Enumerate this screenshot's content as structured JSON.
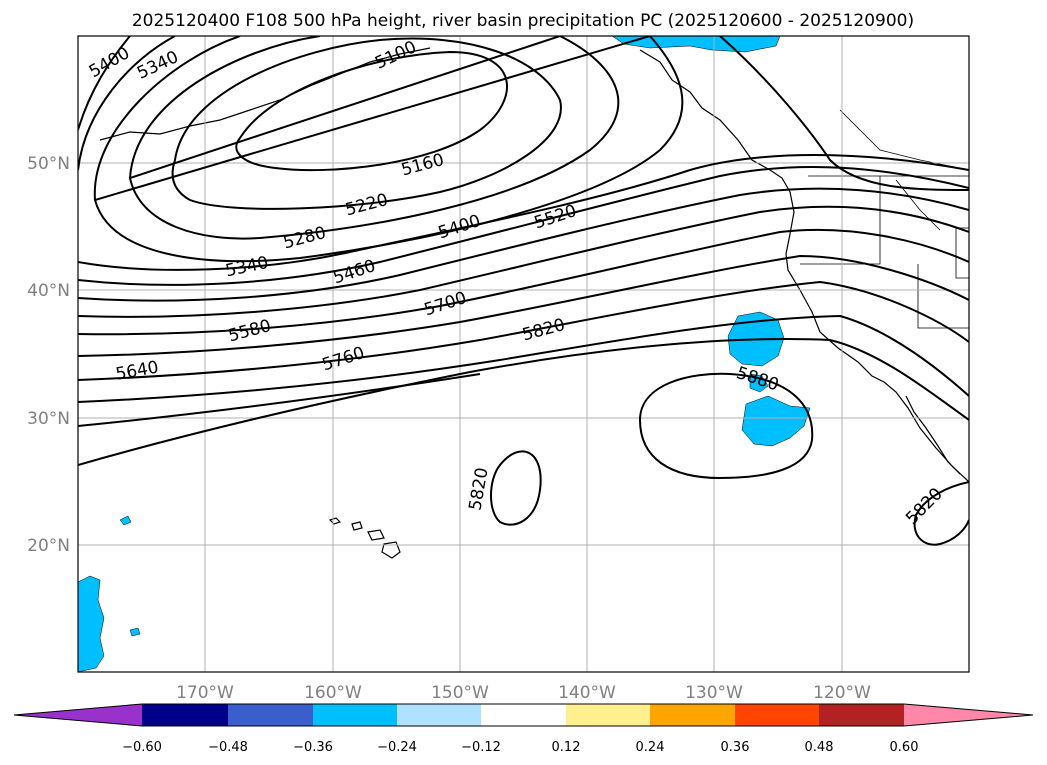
{
  "title": "2025120400 F108 500 hPa height, river basin precipitation PC (2025120600 - 2025120900)",
  "map": {
    "lon_ticks": [
      "170°W",
      "160°W",
      "150°W",
      "140°W",
      "130°W",
      "120°W"
    ],
    "lat_ticks": [
      "50°N",
      "40°N",
      "30°N",
      "20°N"
    ],
    "gridlines": true,
    "contour_labels": [
      "5400",
      "5340",
      "5100",
      "5160",
      "5220",
      "5280",
      "5340",
      "5400",
      "5460",
      "5520",
      "5580",
      "5640",
      "5700",
      "5760",
      "5820",
      "5880",
      "5820",
      "5820"
    ]
  },
  "colorbar": {
    "ticks": [
      "−0.60",
      "−0.48",
      "−0.36",
      "−0.24",
      "−0.12",
      "0.12",
      "0.24",
      "0.36",
      "0.48",
      "0.60"
    ],
    "colors": [
      "#9932cc",
      "#00008b",
      "#3a5fcd",
      "#00bfff",
      "#b0e2ff",
      "#ffffff",
      "#fff08f",
      "#ffa500",
      "#ff4500",
      "#b22222",
      "#ff88aa"
    ]
  },
  "colors": {
    "precip_fill": "#00bfff",
    "contour": "#000000",
    "grid": "#b0b0b0",
    "tick_label": "#808080"
  }
}
